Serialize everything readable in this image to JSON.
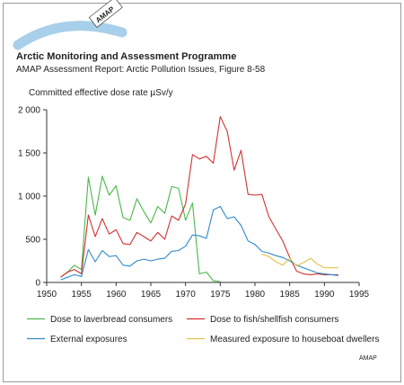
{
  "header": {
    "logo_text": "AMAP",
    "title": "Arctic Monitoring and Assessment Programme",
    "subtitle": "AMAP Assessment Report: Arctic Pollution Issues, Figure 8-58"
  },
  "footer": {
    "credit": "AMAP"
  },
  "colors": {
    "green": "#4cb84c",
    "red": "#d23232",
    "blue": "#2f8ac9",
    "yellow": "#e6c04a",
    "arc": "#a8d0ea"
  },
  "chart_data": {
    "type": "line",
    "ylabel": "Committed effective dose rate µSv/y",
    "xlabel": "",
    "xlim": [
      1950,
      1995
    ],
    "ylim": [
      0,
      2000
    ],
    "xticks": [
      "1950",
      "1955",
      "1960",
      "1965",
      "1970",
      "1975",
      "1980",
      "1985",
      "1990",
      "1995"
    ],
    "yticks": [
      "0",
      "500",
      "1 000",
      "1 500",
      "2 000"
    ],
    "grid": false,
    "legend_position": "bottom",
    "series": [
      {
        "name": "Dose to laverbread consumers",
        "color": "#4cb84c",
        "x": [
          1952,
          1953,
          1954,
          1955,
          1956,
          1957,
          1958,
          1959,
          1960,
          1961,
          1962,
          1963,
          1964,
          1965,
          1966,
          1967,
          1968,
          1969,
          1970,
          1971,
          1972,
          1973,
          1974,
          1975
        ],
        "y": [
          60,
          120,
          200,
          150,
          1220,
          780,
          1230,
          1010,
          1120,
          750,
          720,
          970,
          820,
          690,
          880,
          800,
          1110,
          1090,
          720,
          920,
          100,
          120,
          20,
          10
        ]
      },
      {
        "name": "Dose to fish/shellfish consumers",
        "color": "#d23232",
        "x": [
          1952,
          1953,
          1954,
          1955,
          1956,
          1957,
          1958,
          1959,
          1960,
          1961,
          1962,
          1963,
          1964,
          1965,
          1966,
          1967,
          1968,
          1969,
          1970,
          1971,
          1972,
          1973,
          1974,
          1975,
          1976,
          1977,
          1978,
          1979,
          1980,
          1981,
          1982,
          1983,
          1984,
          1985,
          1986,
          1987,
          1988,
          1989,
          1990,
          1991,
          1992
        ],
        "y": [
          60,
          120,
          150,
          100,
          780,
          530,
          740,
          560,
          610,
          450,
          440,
          580,
          530,
          480,
          580,
          500,
          770,
          720,
          910,
          1480,
          1430,
          1460,
          1380,
          1920,
          1750,
          1300,
          1530,
          1020,
          1010,
          1020,
          760,
          620,
          480,
          290,
          130,
          100,
          90,
          100,
          90,
          90,
          90
        ]
      },
      {
        "name": "External exposures",
        "color": "#2f8ac9",
        "x": [
          1952,
          1953,
          1954,
          1955,
          1956,
          1957,
          1958,
          1959,
          1960,
          1961,
          1962,
          1963,
          1964,
          1965,
          1966,
          1967,
          1968,
          1969,
          1970,
          1971,
          1972,
          1973,
          1974,
          1975,
          1976,
          1977,
          1978,
          1979,
          1980,
          1981,
          1982,
          1983,
          1984,
          1985,
          1986,
          1987,
          1988,
          1989,
          1990,
          1991,
          1992
        ],
        "y": [
          30,
          60,
          90,
          70,
          380,
          240,
          370,
          300,
          310,
          200,
          190,
          250,
          270,
          250,
          270,
          280,
          360,
          370,
          420,
          550,
          540,
          510,
          840,
          880,
          740,
          760,
          660,
          480,
          440,
          360,
          340,
          310,
          290,
          250,
          200,
          170,
          140,
          110,
          100,
          90,
          80
        ]
      },
      {
        "name": "Measured exposure to houseboat dwellers",
        "color": "#e6c04a",
        "x": [
          1981,
          1982,
          1983,
          1984,
          1985,
          1986,
          1987,
          1988,
          1989,
          1990,
          1991,
          1992
        ],
        "y": [
          330,
          300,
          240,
          200,
          280,
          190,
          230,
          280,
          210,
          170,
          170,
          170
        ]
      }
    ]
  }
}
